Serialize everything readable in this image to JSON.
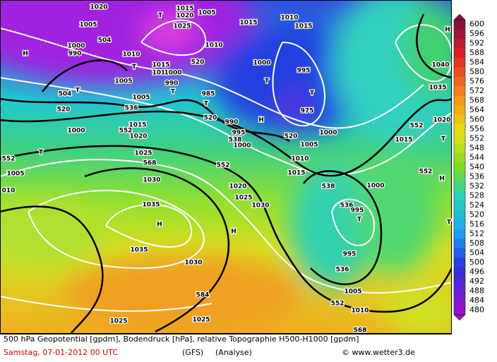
{
  "map": {
    "labels": [
      "1020",
      "1005",
      "504",
      "T",
      "1015",
      "1020",
      "1025",
      "1005",
      "1015",
      "1010",
      "520",
      "1010",
      "1015",
      "H",
      "H",
      "1000",
      "990",
      "1010",
      "1015",
      "1010",
      "1000",
      "990",
      "T",
      "T",
      "T",
      "504",
      "520",
      "1005",
      "1005",
      "536",
      "985",
      "T",
      "1000",
      "995",
      "T",
      "T",
      "975",
      "520",
      "H",
      "990",
      "995",
      "538",
      "1000",
      "520",
      "1000",
      "1005",
      "552",
      "1020",
      "1015",
      "1000",
      "552",
      "T",
      "1005",
      "1025",
      "568",
      "552",
      "1010",
      "1015",
      "538",
      "1000",
      "552",
      "1020",
      "T",
      "1015",
      "552",
      "H",
      "1030",
      "1020",
      "1025",
      "1030",
      "010",
      "1035",
      "H",
      "H",
      "536",
      "T",
      "995",
      "T",
      "1035",
      "1030",
      "995",
      "536",
      "584",
      "1005",
      "552",
      "1010",
      "1025",
      "1025",
      "568",
      "1040",
      "1035"
    ]
  },
  "colorbar": {
    "labels": [
      600,
      596,
      592,
      588,
      584,
      580,
      576,
      572,
      568,
      564,
      560,
      556,
      552,
      548,
      544,
      540,
      536,
      532,
      528,
      524,
      520,
      516,
      512,
      508,
      504,
      500,
      496,
      492,
      488,
      484,
      480
    ]
  },
  "footer": {
    "description": "500 hPa Geopotential [gpdm], Bodendruck [hPa], relative Topographie H500-H1000 [gpdm]",
    "date": "Samstag, 07-01-2012  00 UTC",
    "model": "(GFS)",
    "run": "(Analyse)",
    "credit": "© www.wetter3.de"
  }
}
